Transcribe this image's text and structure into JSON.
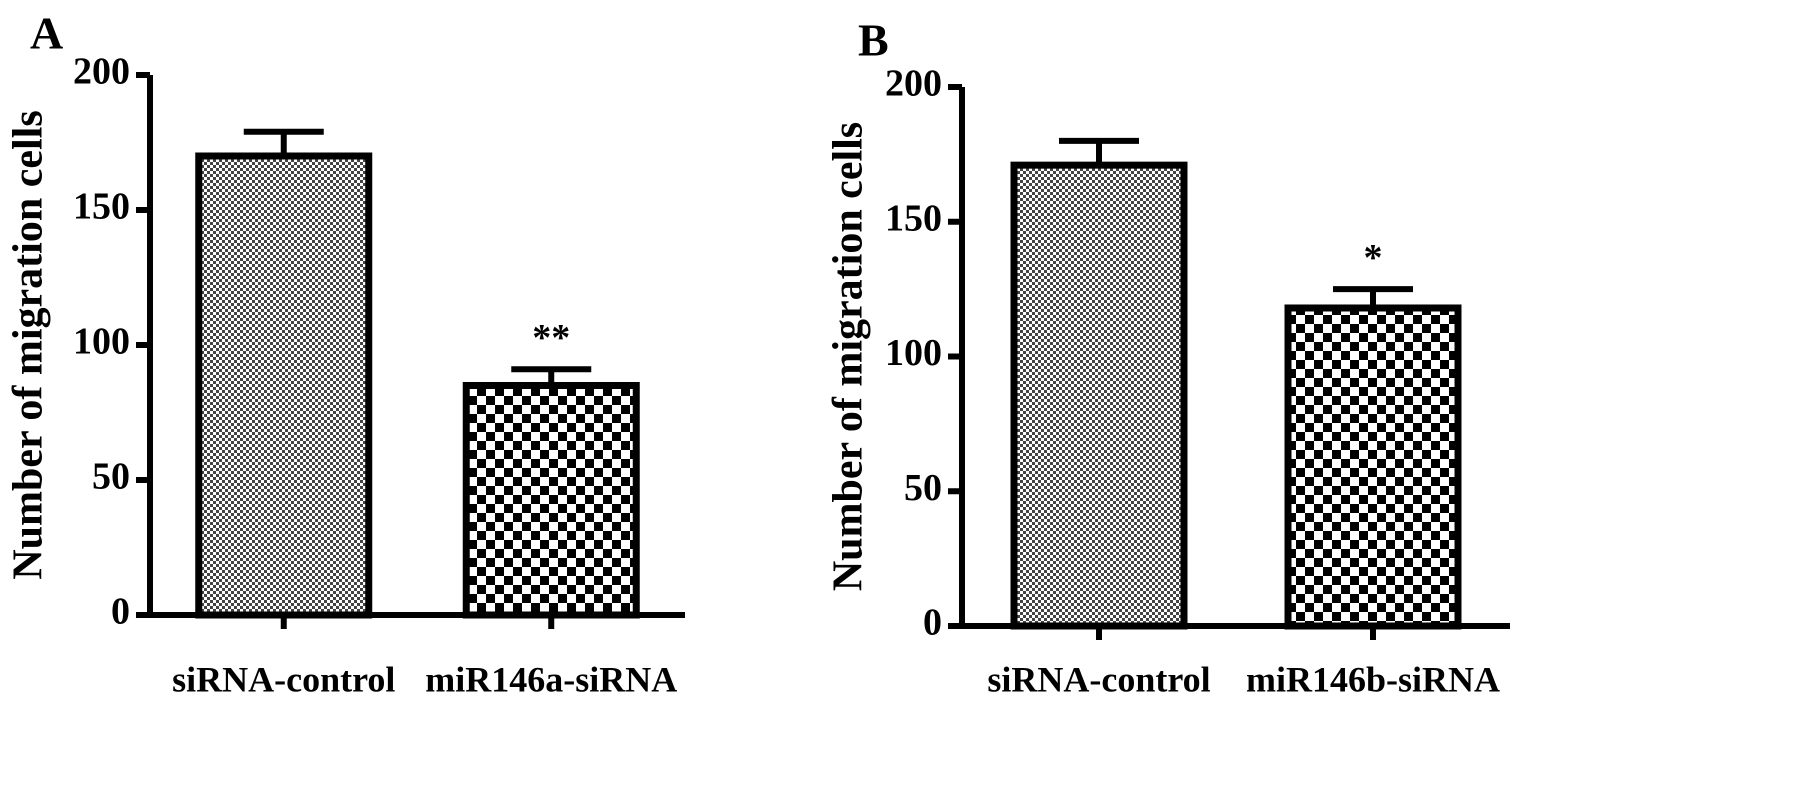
{
  "chart_data": [
    {
      "type": "bar",
      "panel_label": "A",
      "y_label": "Number of migration cells",
      "categories": [
        "siRNA-control",
        "miR146a-siRNA"
      ],
      "values": [
        170,
        85
      ],
      "errors": [
        9,
        6
      ],
      "annotations": [
        null,
        "**"
      ],
      "ylim": [
        0,
        200
      ],
      "yticks": [
        0,
        50,
        100,
        150,
        200
      ]
    },
    {
      "type": "bar",
      "panel_label": "B",
      "y_label": "Number of migration cells",
      "categories": [
        "siRNA-control",
        "miR146b-siRNA"
      ],
      "values": [
        171,
        118
      ],
      "errors": [
        9,
        7
      ],
      "annotations": [
        null,
        "*"
      ],
      "ylim": [
        0,
        200
      ],
      "yticks": [
        0,
        50,
        100,
        150,
        200
      ]
    }
  ]
}
